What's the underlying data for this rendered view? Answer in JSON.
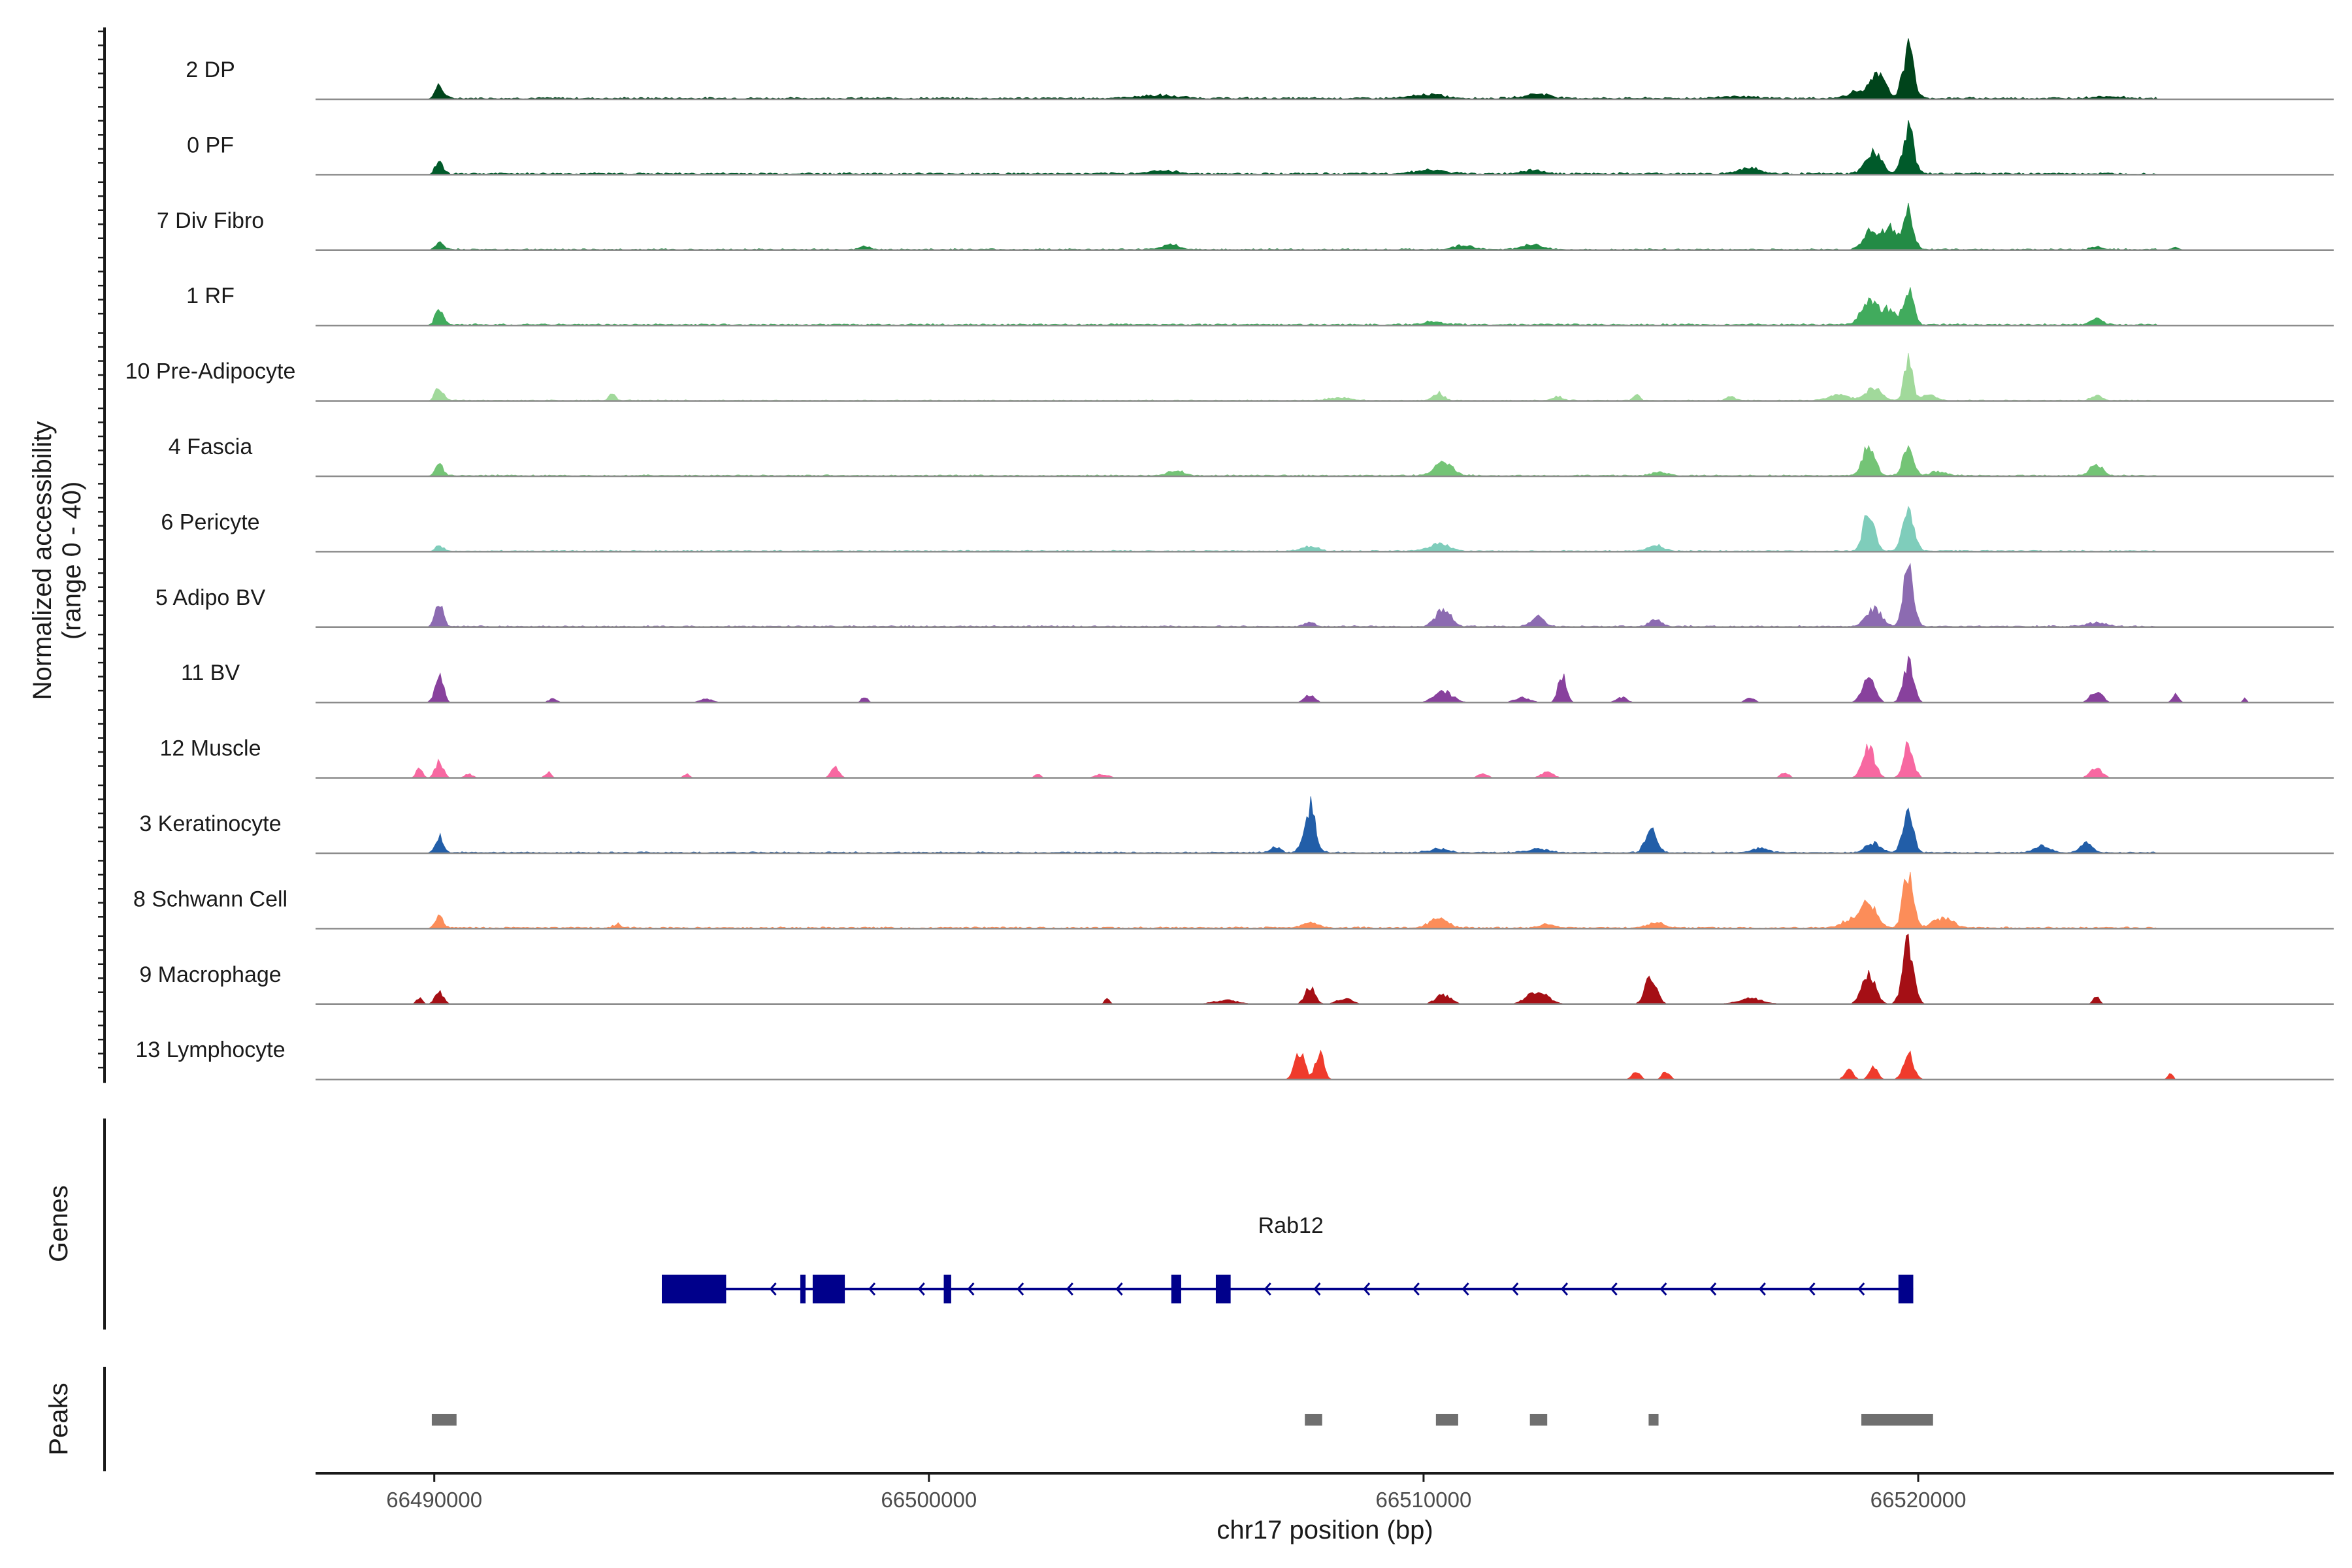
{
  "chart_data": {
    "type": "area",
    "x_axis": {
      "label": "chr17 position (bp)",
      "lim": [
        66487600,
        66528400
      ],
      "ticks": [
        66490000,
        66500000,
        66510000,
        66520000
      ],
      "tick_labels": [
        "66490000",
        "66500000",
        "66510000",
        "66520000"
      ]
    },
    "coverage_panel": {
      "ylabel_line1": "Normalized accessibility",
      "ylabel_line2": "(range 0 - 40)",
      "range": [
        0,
        40
      ]
    },
    "tracks": [
      {
        "name": "2 DP",
        "color": "#00441b",
        "baseline": 0.6,
        "peaks": [
          [
            66490100,
            7,
            80
          ],
          [
            66519800,
            26,
            110
          ],
          [
            66519200,
            12,
            140
          ],
          [
            66518800,
            4,
            200
          ],
          [
            66504600,
            1.5,
            400
          ],
          [
            66510100,
            2,
            300
          ],
          [
            66512300,
            2.5,
            250
          ],
          [
            66516300,
            1.2,
            300
          ],
          [
            66523800,
            1,
            300
          ]
        ],
        "noise_range": [
          66490000,
          66524800
        ]
      },
      {
        "name": "0 PF",
        "color": "#005a2a",
        "baseline": 0.6,
        "peaks": [
          [
            66490100,
            6,
            80
          ],
          [
            66519800,
            24,
            110
          ],
          [
            66519100,
            13,
            150
          ],
          [
            66516600,
            3.5,
            200
          ],
          [
            66510100,
            2,
            300
          ],
          [
            66512200,
            2,
            200
          ],
          [
            66504700,
            1.5,
            300
          ]
        ],
        "noise_range": [
          66490000,
          66524800
        ]
      },
      {
        "name": "7 Div Fibro",
        "color": "#238b45",
        "baseline": 0.4,
        "peaks": [
          [
            66490100,
            4,
            80
          ],
          [
            66519800,
            21,
            100
          ],
          [
            66519400,
            12,
            140
          ],
          [
            66519000,
            9,
            130
          ],
          [
            66504900,
            3,
            150
          ],
          [
            66512200,
            2.5,
            200
          ],
          [
            66510800,
            2,
            200
          ],
          [
            66498700,
            1.5,
            100
          ],
          [
            66525200,
            1.5,
            80
          ],
          [
            66523600,
            1.5,
            100
          ]
        ],
        "noise_range": [
          66490000,
          66524800
        ]
      },
      {
        "name": "1 RF",
        "color": "#41ab5d",
        "baseline": 0.5,
        "peaks": [
          [
            66490100,
            8,
            80
          ],
          [
            66519800,
            19,
            100
          ],
          [
            66519000,
            13,
            150
          ],
          [
            66519400,
            8,
            150
          ],
          [
            66523600,
            3,
            120
          ],
          [
            66510200,
            1.5,
            200
          ]
        ],
        "noise_range": [
          66490000,
          66524800
        ]
      },
      {
        "name": "10 Pre-Adipocyte",
        "color": "#a1d99b",
        "baseline": 0.3,
        "peaks": [
          [
            66519800,
            22,
            80
          ],
          [
            66519100,
            7,
            150
          ],
          [
            66490100,
            7,
            80
          ],
          [
            66493600,
            4,
            60
          ],
          [
            66510300,
            4,
            100
          ],
          [
            66518400,
            3,
            200
          ],
          [
            66520200,
            3,
            150
          ],
          [
            66516200,
            2.5,
            80
          ],
          [
            66514300,
            3,
            60
          ],
          [
            66523600,
            3,
            100
          ],
          [
            66512700,
            2,
            100
          ],
          [
            66508300,
            1.5,
            200
          ]
        ],
        "noise_range": [
          66490000,
          66524800
        ]
      },
      {
        "name": "4 Fascia",
        "color": "#74c476",
        "baseline": 0.4,
        "peaks": [
          [
            66519000,
            17,
            120
          ],
          [
            66519800,
            18,
            100
          ],
          [
            66510400,
            7,
            180
          ],
          [
            66523600,
            6,
            120
          ],
          [
            66490100,
            6,
            80
          ],
          [
            66505000,
            2.5,
            150
          ],
          [
            66514800,
            2,
            150
          ],
          [
            66520400,
            2,
            150
          ]
        ],
        "noise_range": [
          66490000,
          66524800
        ]
      },
      {
        "name": "6 Pericyte",
        "color": "#7fcdbb",
        "baseline": 0.4,
        "peaks": [
          [
            66519000,
            22,
            110
          ],
          [
            66519800,
            21,
            110
          ],
          [
            66510300,
            4,
            200
          ],
          [
            66514700,
            3,
            150
          ],
          [
            66507700,
            2.5,
            150
          ],
          [
            66490100,
            3,
            80
          ]
        ],
        "noise_range": [
          66490000,
          66524800
        ]
      },
      {
        "name": "5 Adipo BV",
        "color": "#8c6bb1",
        "baseline": 0.4,
        "peaks": [
          [
            66519800,
            31,
            100
          ],
          [
            66519100,
            10,
            150
          ],
          [
            66490100,
            12,
            80
          ],
          [
            66510400,
            9,
            150
          ],
          [
            66512300,
            5,
            120
          ],
          [
            66514700,
            4,
            120
          ],
          [
            66507700,
            2,
            100
          ],
          [
            66523600,
            2,
            200
          ]
        ],
        "noise_range": [
          66490000,
          66524800
        ]
      },
      {
        "name": "11 BV",
        "color": "#88419d",
        "baseline": 0,
        "peaks": [
          [
            66490100,
            16,
            80
          ],
          [
            66519800,
            21,
            100
          ],
          [
            66519000,
            13,
            120
          ],
          [
            66512800,
            15,
            80
          ],
          [
            66510400,
            6,
            180
          ],
          [
            66523600,
            6,
            120
          ],
          [
            66525200,
            5,
            60
          ],
          [
            66507700,
            4,
            100
          ],
          [
            66516600,
            3,
            80
          ],
          [
            66498700,
            3,
            60
          ],
          [
            66492400,
            2,
            80
          ],
          [
            66495500,
            2,
            120
          ],
          [
            66512000,
            2.5,
            150
          ],
          [
            66514000,
            3,
            100
          ],
          [
            66526600,
            2,
            40
          ]
        ],
        "noise_range": null
      },
      {
        "name": "12 Muscle",
        "color": "#f768a1",
        "baseline": 0,
        "peaks": [
          [
            66519000,
            16,
            120
          ],
          [
            66519800,
            18,
            100
          ],
          [
            66490100,
            9,
            80
          ],
          [
            66489700,
            6,
            60
          ],
          [
            66498100,
            6,
            80
          ],
          [
            66523600,
            5,
            120
          ],
          [
            66512500,
            3,
            120
          ],
          [
            66517300,
            3,
            80
          ],
          [
            66492300,
            3,
            60
          ],
          [
            66495100,
            2,
            60
          ],
          [
            66502200,
            2,
            60
          ],
          [
            66511200,
            2,
            100
          ],
          [
            66503500,
            2,
            120
          ],
          [
            66490700,
            2,
            80
          ]
        ],
        "noise_range": null
      },
      {
        "name": "3 Keratinocyte",
        "color": "#225ea8",
        "baseline": 0.4,
        "peaks": [
          [
            66507700,
            25,
            110
          ],
          [
            66514600,
            14,
            110
          ],
          [
            66519800,
            24,
            100
          ],
          [
            66490100,
            9,
            80
          ],
          [
            66522500,
            4,
            150
          ],
          [
            66523400,
            5,
            120
          ],
          [
            66507000,
            3,
            100
          ],
          [
            66519100,
            5,
            150
          ],
          [
            66516800,
            2.5,
            150
          ],
          [
            66510300,
            2,
            200
          ],
          [
            66512300,
            2,
            200
          ]
        ],
        "noise_range": [
          66490000,
          66524800
        ]
      },
      {
        "name": "8 Schwann Cell",
        "color": "#fc8d59",
        "baseline": 0.5,
        "peaks": [
          [
            66519800,
            31,
            100
          ],
          [
            66519000,
            14,
            150
          ],
          [
            66520500,
            5,
            200
          ],
          [
            66518600,
            4,
            150
          ],
          [
            66510300,
            5,
            180
          ],
          [
            66490100,
            7,
            80
          ],
          [
            66507700,
            3,
            150
          ],
          [
            66514700,
            3,
            150
          ],
          [
            66493700,
            2,
            80
          ],
          [
            66512500,
            2,
            150
          ]
        ],
        "noise_range": [
          66490000,
          66524800
        ]
      },
      {
        "name": "9 Macrophage",
        "color": "#a50f15",
        "baseline": 0,
        "peaks": [
          [
            66519800,
            32,
            110
          ],
          [
            66519000,
            17,
            130
          ],
          [
            66514600,
            16,
            110
          ],
          [
            66490100,
            7,
            80
          ],
          [
            66507700,
            9,
            100
          ],
          [
            66512300,
            7,
            200
          ],
          [
            66510400,
            5,
            150
          ],
          [
            66516600,
            3,
            250
          ],
          [
            66508400,
            3,
            150
          ],
          [
            66506000,
            2,
            250
          ],
          [
            66489700,
            3,
            60
          ],
          [
            66523600,
            4,
            60
          ],
          [
            66503600,
            3,
            50
          ]
        ],
        "noise_range": null
      },
      {
        "name": "13 Lymphocyte",
        "color": "#ef3b2c",
        "baseline": 0,
        "peaks": [
          [
            66507500,
            14,
            100
          ],
          [
            66507900,
            16,
            80
          ],
          [
            66519800,
            15,
            100
          ],
          [
            66519100,
            7,
            80
          ],
          [
            66518600,
            6,
            80
          ],
          [
            66514300,
            4,
            80
          ],
          [
            66514900,
            4,
            80
          ],
          [
            66525100,
            3,
            50
          ]
        ],
        "noise_range": null
      }
    ],
    "genes_panel": {
      "ylabel": "Genes",
      "gene_name": "Rab12",
      "strand": "-",
      "start": 66494600,
      "end": 66519900,
      "exons": [
        [
          66494600,
          66495900
        ],
        [
          66497400,
          66497500
        ],
        [
          66497650,
          66498300
        ],
        [
          66500300,
          66500450
        ],
        [
          66504900,
          66505100
        ],
        [
          66505800,
          66506100
        ],
        [
          66519600,
          66519900
        ]
      ],
      "color": "#00008b"
    },
    "peaks_panel": {
      "ylabel": "Peaks",
      "regions": [
        [
          66489950,
          66490450
        ],
        [
          66507600,
          66507950
        ],
        [
          66510250,
          66510700
        ],
        [
          66512150,
          66512500
        ],
        [
          66514550,
          66514750
        ],
        [
          66518850,
          66520300
        ]
      ],
      "color": "#6f6f6f"
    }
  }
}
